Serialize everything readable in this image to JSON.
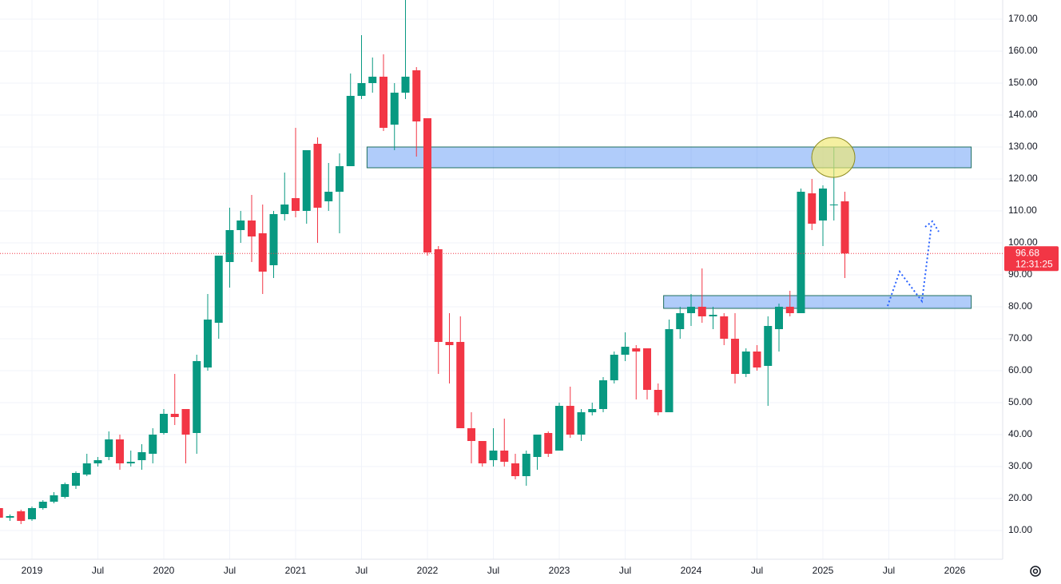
{
  "chart_data": {
    "type": "candlestick",
    "x": [
      "2018-10",
      "2018-11",
      "2018-12",
      "2019-01",
      "2019-02",
      "2019-03",
      "2019-04",
      "2019-05",
      "2019-06",
      "2019-07",
      "2019-08",
      "2019-09",
      "2019-10",
      "2019-11",
      "2019-12",
      "2020-01",
      "2020-02",
      "2020-03",
      "2020-04",
      "2020-05",
      "2020-06",
      "2020-07",
      "2020-08",
      "2020-09",
      "2020-10",
      "2020-11",
      "2020-12",
      "2021-01",
      "2021-02",
      "2021-03",
      "2021-04",
      "2021-05",
      "2021-06",
      "2021-07",
      "2021-08",
      "2021-09",
      "2021-10",
      "2021-11",
      "2021-12",
      "2022-01",
      "2022-02",
      "2022-03",
      "2022-04",
      "2022-05",
      "2022-06",
      "2022-07",
      "2022-08",
      "2022-09",
      "2022-10",
      "2022-11",
      "2022-12",
      "2023-01",
      "2023-02",
      "2023-03",
      "2023-04",
      "2023-05",
      "2023-06",
      "2023-07",
      "2023-08",
      "2023-09",
      "2023-10",
      "2023-11",
      "2023-12",
      "2024-01",
      "2024-02",
      "2024-03",
      "2024-04",
      "2024-05",
      "2024-06",
      "2024-07",
      "2024-08",
      "2024-09",
      "2024-10",
      "2024-11",
      "2024-12",
      "2025-01",
      "2025-02",
      "2025-03"
    ],
    "open": [
      17,
      14,
      16,
      13.5,
      17,
      19,
      20.5,
      24,
      27.5,
      31,
      33,
      38.5,
      31,
      32,
      34,
      40.5,
      46.5,
      48,
      40.5,
      61,
      75,
      94,
      104,
      107,
      103,
      93,
      109,
      114,
      110,
      131,
      113,
      116,
      124,
      146,
      150,
      152,
      137,
      147,
      154,
      139,
      98,
      69,
      69,
      42,
      38,
      32,
      35,
      31,
      27,
      33,
      40.5,
      35,
      49,
      40,
      47,
      48,
      57,
      65,
      67,
      67,
      54,
      47,
      73,
      78,
      80,
      77,
      77,
      70,
      59,
      66,
      61.5,
      73,
      80,
      78,
      115.5,
      107,
      112,
      113
    ],
    "high": [
      17,
      15,
      16.5,
      17.5,
      19.5,
      22,
      25,
      28.5,
      34,
      33,
      41,
      40,
      35,
      37,
      42,
      48,
      59,
      48,
      65,
      84,
      96,
      111,
      110,
      115,
      112,
      110,
      122,
      136,
      129,
      133,
      125,
      128,
      153,
      165,
      158,
      159,
      150,
      178,
      155,
      139,
      99,
      78,
      77,
      47,
      38,
      42,
      45,
      34,
      35,
      40,
      41,
      50,
      55,
      48,
      50,
      58,
      66,
      72,
      68,
      67,
      56,
      76,
      80,
      84,
      92,
      80,
      78,
      78,
      67,
      68,
      77,
      81,
      85,
      117,
      120,
      118,
      130,
      116
    ],
    "low": [
      13,
      13,
      12,
      13,
      16.5,
      18.5,
      20,
      23,
      27,
      30,
      32,
      29,
      30,
      29,
      31,
      40,
      43,
      31,
      34,
      60,
      70,
      86,
      100,
      94,
      84,
      89,
      107,
      108,
      106,
      100,
      110,
      103,
      124,
      145,
      147,
      135,
      129,
      145,
      127,
      96,
      59,
      56,
      42,
      31,
      30,
      30,
      30,
      26,
      24,
      29,
      33,
      35,
      39,
      38,
      46,
      47,
      56,
      63,
      51,
      51,
      46,
      47,
      70,
      74,
      75,
      73,
      68,
      56,
      58,
      60,
      49,
      66,
      77,
      78,
      104,
      99,
      107,
      89
    ],
    "close": [
      14,
      14.5,
      13,
      17,
      19,
      21,
      24.5,
      28,
      31,
      32,
      38.5,
      31,
      31.5,
      34.5,
      40,
      46.5,
      45.5,
      40,
      63,
      76,
      96,
      104,
      107,
      102,
      91,
      109,
      112,
      110,
      129,
      111,
      116,
      124,
      146,
      150,
      152,
      136,
      147,
      152,
      138,
      97,
      69,
      68,
      42,
      38,
      31,
      35,
      31.5,
      27,
      34,
      40,
      34,
      49,
      40,
      47,
      48,
      57,
      65,
      67.5,
      66,
      54,
      47,
      73,
      78,
      80,
      77,
      77.5,
      70,
      59,
      66,
      61,
      74,
      80,
      78,
      116,
      106,
      117,
      112,
      96.68
    ],
    "up_color": "#089981",
    "down_color": "#f23645",
    "ylim": [
      1,
      176
    ],
    "yticks": [
      {
        "value": 10,
        "label": "10.00"
      },
      {
        "value": 20,
        "label": "20.00"
      },
      {
        "value": 30,
        "label": "30.00"
      },
      {
        "value": 40,
        "label": "40.00"
      },
      {
        "value": 50,
        "label": "50.00"
      },
      {
        "value": 60,
        "label": "60.00"
      },
      {
        "value": 70,
        "label": "70.00"
      },
      {
        "value": 80,
        "label": "80.00"
      },
      {
        "value": 90,
        "label": "90.00"
      },
      {
        "value": 100,
        "label": "100.00"
      },
      {
        "value": 110,
        "label": "110.00"
      },
      {
        "value": 120,
        "label": "120.00"
      },
      {
        "value": 130,
        "label": "130.00"
      },
      {
        "value": 140,
        "label": "140.00"
      },
      {
        "value": 150,
        "label": "150.00"
      },
      {
        "value": 160,
        "label": "160.00"
      },
      {
        "value": 170,
        "label": "170.00"
      }
    ],
    "xticks": [
      {
        "value": "2019-01",
        "label": "2019"
      },
      {
        "value": "2019-07",
        "label": "Jul"
      },
      {
        "value": "2020-01",
        "label": "2020"
      },
      {
        "value": "2020-07",
        "label": "Jul"
      },
      {
        "value": "2021-01",
        "label": "2021"
      },
      {
        "value": "2021-07",
        "label": "Jul"
      },
      {
        "value": "2022-01",
        "label": "2022"
      },
      {
        "value": "2022-07",
        "label": "Jul"
      },
      {
        "value": "2023-01",
        "label": "2023"
      },
      {
        "value": "2023-07",
        "label": "Jul"
      },
      {
        "value": "2024-01",
        "label": "2024"
      },
      {
        "value": "2024-07",
        "label": "Jul"
      },
      {
        "value": "2025-01",
        "label": "2025"
      },
      {
        "value": "2025-07",
        "label": "Jul"
      },
      {
        "value": "2026-01",
        "label": "2026"
      }
    ],
    "grid": true,
    "last_price": {
      "value": 96.68,
      "label": "96.68"
    },
    "countdown": "12:31:25",
    "zones": [
      {
        "from": "2021-08",
        "to": "2026-02",
        "low": 123.5,
        "high": 130
      },
      {
        "from": "2023-11",
        "to": "2026-02",
        "low": 79.5,
        "high": 83.5
      }
    ]
  }
}
